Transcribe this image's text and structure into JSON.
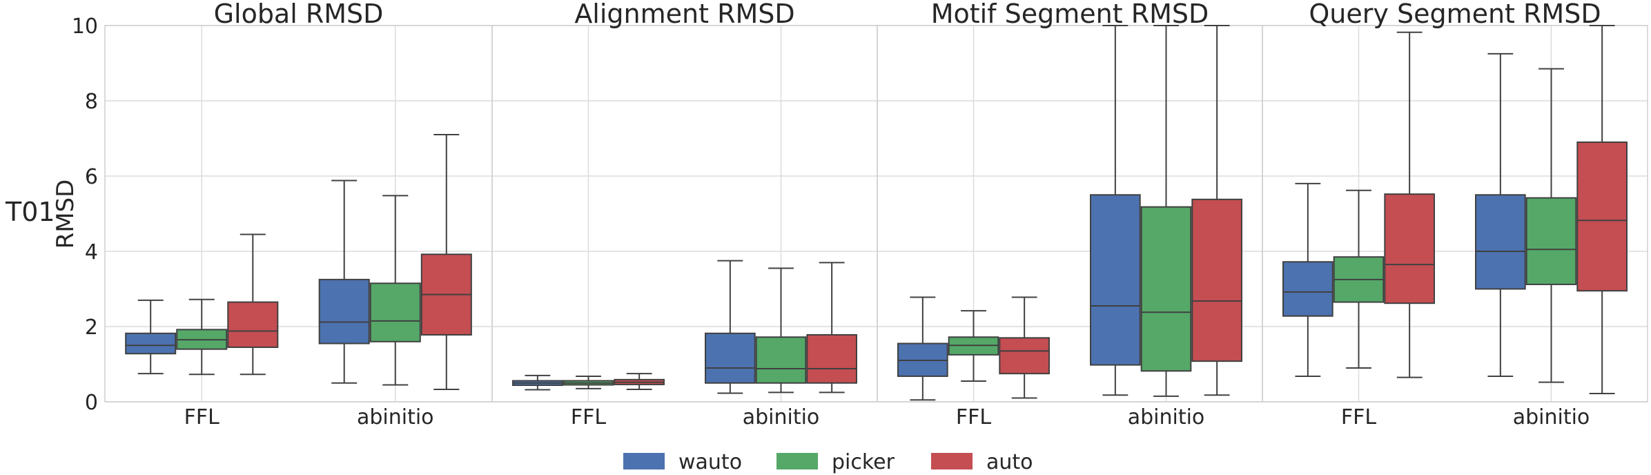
{
  "chart_data": {
    "type": "box",
    "row_label": "T01",
    "ylabel": "RMSD",
    "ylim": [
      0,
      10
    ],
    "yticks": [
      0,
      2,
      4,
      6,
      8,
      10
    ],
    "categories": [
      "FFL",
      "abinitio"
    ],
    "legend": {
      "placement": "bottom-center",
      "entries": [
        {
          "name": "wauto",
          "color": "#4c72b0"
        },
        {
          "name": "picker",
          "color": "#55a868"
        },
        {
          "name": "auto",
          "color": "#c44e52"
        }
      ]
    },
    "panels": [
      {
        "title": "Global RMSD",
        "groups": [
          {
            "category": "FFL",
            "boxes": [
              {
                "series": "wauto",
                "min": 0.75,
                "q1": 1.28,
                "median": 1.5,
                "q3": 1.82,
                "max": 2.7
              },
              {
                "series": "picker",
                "min": 0.73,
                "q1": 1.4,
                "median": 1.65,
                "q3": 1.92,
                "max": 2.72
              },
              {
                "series": "auto",
                "min": 0.73,
                "q1": 1.45,
                "median": 1.88,
                "q3": 2.65,
                "max": 4.45
              }
            ]
          },
          {
            "category": "abinitio",
            "boxes": [
              {
                "series": "wauto",
                "min": 0.5,
                "q1": 1.55,
                "median": 2.12,
                "q3": 3.25,
                "max": 5.88
              },
              {
                "series": "picker",
                "min": 0.45,
                "q1": 1.6,
                "median": 2.15,
                "q3": 3.15,
                "max": 5.48
              },
              {
                "series": "auto",
                "min": 0.33,
                "q1": 1.78,
                "median": 2.85,
                "q3": 3.92,
                "max": 7.1
              }
            ]
          }
        ]
      },
      {
        "title": "Alignment RMSD",
        "groups": [
          {
            "category": "FFL",
            "boxes": [
              {
                "series": "wauto",
                "min": 0.32,
                "q1": 0.44,
                "median": 0.5,
                "q3": 0.56,
                "max": 0.7
              },
              {
                "series": "picker",
                "min": 0.35,
                "q1": 0.45,
                "median": 0.5,
                "q3": 0.56,
                "max": 0.68
              },
              {
                "series": "auto",
                "min": 0.33,
                "q1": 0.46,
                "median": 0.52,
                "q3": 0.59,
                "max": 0.75
              }
            ]
          },
          {
            "category": "abinitio",
            "boxes": [
              {
                "series": "wauto",
                "min": 0.23,
                "q1": 0.5,
                "median": 0.9,
                "q3": 1.82,
                "max": 3.75
              },
              {
                "series": "picker",
                "min": 0.25,
                "q1": 0.5,
                "median": 0.88,
                "q3": 1.72,
                "max": 3.55
              },
              {
                "series": "auto",
                "min": 0.25,
                "q1": 0.5,
                "median": 0.88,
                "q3": 1.78,
                "max": 3.7
              }
            ]
          }
        ]
      },
      {
        "title": "Motif Segment RMSD",
        "groups": [
          {
            "category": "FFL",
            "boxes": [
              {
                "series": "wauto",
                "min": 0.05,
                "q1": 0.68,
                "median": 1.1,
                "q3": 1.55,
                "max": 2.78
              },
              {
                "series": "picker",
                "min": 0.55,
                "q1": 1.25,
                "median": 1.5,
                "q3": 1.72,
                "max": 2.42
              },
              {
                "series": "auto",
                "min": 0.1,
                "q1": 0.75,
                "median": 1.35,
                "q3": 1.7,
                "max": 2.78
              }
            ]
          },
          {
            "category": "abinitio",
            "boxes": [
              {
                "series": "wauto",
                "min": 0.18,
                "q1": 0.98,
                "median": 2.55,
                "q3": 5.5,
                "max": 10.0
              },
              {
                "series": "picker",
                "min": 0.15,
                "q1": 0.82,
                "median": 2.38,
                "q3": 5.18,
                "max": 10.0
              },
              {
                "series": "auto",
                "min": 0.18,
                "q1": 1.08,
                "median": 2.68,
                "q3": 5.38,
                "max": 10.0
              }
            ]
          }
        ]
      },
      {
        "title": "Query Segment RMSD",
        "groups": [
          {
            "category": "FFL",
            "boxes": [
              {
                "series": "wauto",
                "min": 0.68,
                "q1": 2.28,
                "median": 2.92,
                "q3": 3.72,
                "max": 5.8
              },
              {
                "series": "picker",
                "min": 0.9,
                "q1": 2.65,
                "median": 3.25,
                "q3": 3.85,
                "max": 5.62
              },
              {
                "series": "auto",
                "min": 0.65,
                "q1": 2.62,
                "median": 3.65,
                "q3": 5.52,
                "max": 9.82
              }
            ]
          },
          {
            "category": "abinitio",
            "boxes": [
              {
                "series": "wauto",
                "min": 0.68,
                "q1": 3.0,
                "median": 4.0,
                "q3": 5.5,
                "max": 9.25
              },
              {
                "series": "picker",
                "min": 0.52,
                "q1": 3.12,
                "median": 4.05,
                "q3": 5.42,
                "max": 8.85
              },
              {
                "series": "auto",
                "min": 0.22,
                "q1": 2.95,
                "median": 4.82,
                "q3": 6.9,
                "max": 10.0
              }
            ]
          }
        ]
      }
    ]
  }
}
